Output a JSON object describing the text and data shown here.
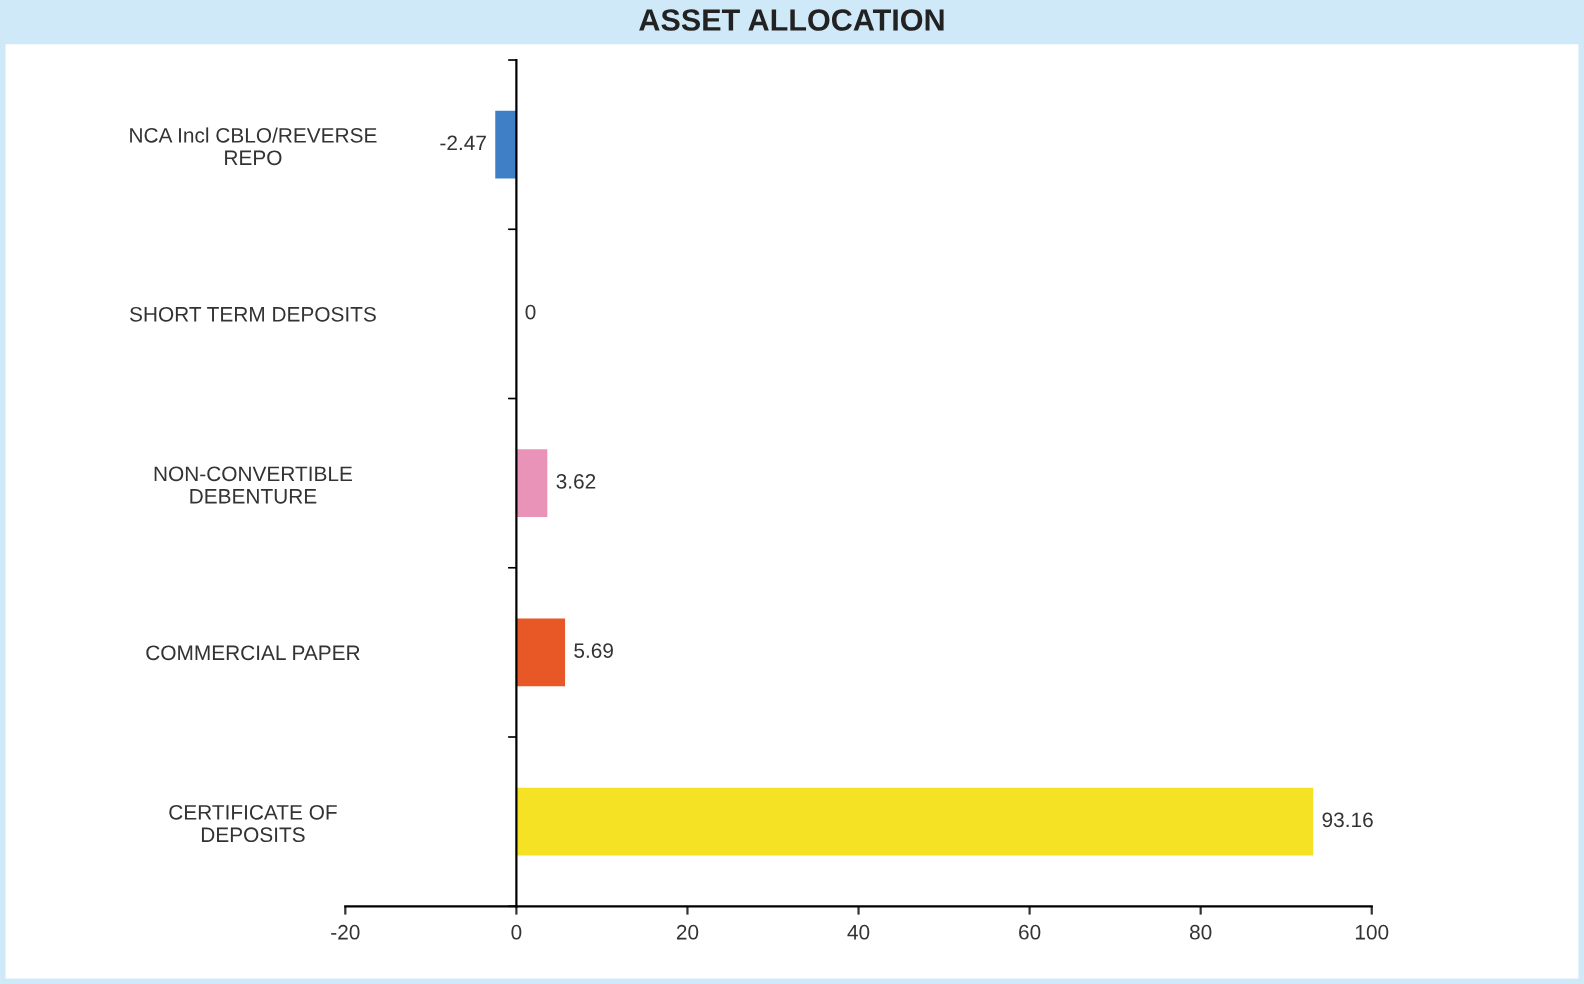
{
  "chart_data": {
    "type": "bar",
    "orientation": "horizontal",
    "title": "ASSET ALLOCATION",
    "categories": [
      "NCA Incl CBLO/REVERSE\nREPO",
      "SHORT TERM DEPOSITS",
      "NON-CONVERTIBLE\nDEBENTURE",
      "COMMERCIAL PAPER",
      "CERTIFICATE OF\nDEPOSITS"
    ],
    "values": [
      -2.47,
      0,
      3.62,
      5.69,
      93.16
    ],
    "colors": [
      "#3f7fc6",
      "#7fb24a",
      "#ea93b8",
      "#e85726",
      "#f6e224"
    ],
    "xlim": [
      -20,
      100
    ],
    "xticks": [
      -20,
      0,
      20,
      40,
      60,
      80,
      100
    ],
    "data_labels": true
  }
}
